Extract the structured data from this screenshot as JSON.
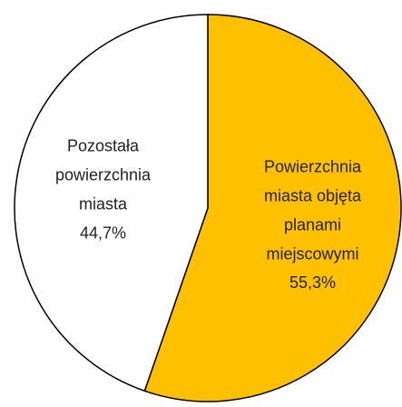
{
  "chart_data": {
    "type": "pie",
    "categories": [
      "Powierzchnia\nmiasta objęta\nplanami\nmiejscowymi",
      "Pozostała\npowierzchnia\nmiasta"
    ],
    "values": [
      55.3,
      44.7
    ],
    "value_labels": [
      "55,3%",
      "44,7%"
    ],
    "colors": [
      "#FFC000",
      "#FFFFFF"
    ]
  }
}
